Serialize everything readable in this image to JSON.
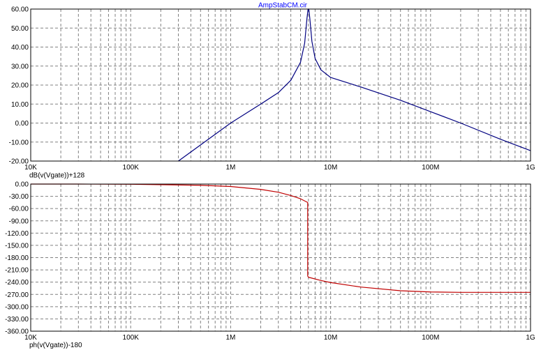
{
  "window": {
    "title": "AmpStabCM.cir"
  },
  "colors": {
    "background": "#ffffff",
    "frame": "#000000",
    "grid": "#808080",
    "magnitude_trace": "#000080",
    "phase_trace": "#c00000",
    "title_text": "#0000ff"
  },
  "chart_data": [
    {
      "type": "line",
      "title": "AmpStabCM.cir",
      "ylabel": "dB(v(Vgate))+128",
      "x_scale": "log",
      "xlim": [
        10000,
        1000000000
      ],
      "ylim": [
        -20,
        60
      ],
      "x_tick_labels": [
        "10K",
        "100K",
        "1M",
        "10M",
        "100M",
        "1G"
      ],
      "y_tick_labels": [
        "60.00",
        "50.00",
        "40.00",
        "30.00",
        "20.00",
        "10.00",
        "0.00",
        "-10.00",
        "-20.00"
      ],
      "grid": true,
      "series": [
        {
          "name": "dB(v(Vgate))+128",
          "color": "#000080",
          "x": [
            300000,
            1000000,
            2000000,
            3000000,
            4000000,
            5000000,
            5500000,
            5800000,
            5950000,
            6050000,
            6200000,
            6500000,
            7000000,
            8000000,
            10000000,
            20000000,
            50000000,
            100000000,
            200000000,
            500000000,
            1000000000
          ],
          "y": [
            -20,
            0,
            10,
            16,
            22.5,
            32,
            42,
            55,
            61,
            61,
            55,
            43,
            34,
            28,
            24,
            19,
            12,
            6,
            0,
            -8.5,
            -14.5
          ]
        }
      ]
    },
    {
      "type": "line",
      "ylabel": "ph(v(Vgate))-180",
      "x_scale": "log",
      "xlim": [
        10000,
        1000000000
      ],
      "ylim": [
        -360,
        0
      ],
      "x_tick_labels": [
        "10K",
        "100K",
        "1M",
        "10M",
        "100M",
        "1G"
      ],
      "y_tick_labels": [
        "0.00",
        "-30.00",
        "-60.00",
        "-90.00",
        "-120.00",
        "-150.00",
        "-180.00",
        "-210.00",
        "-240.00",
        "-270.00",
        "-300.00",
        "-330.00",
        "-360.00"
      ],
      "grid": true,
      "series": [
        {
          "name": "ph(v(Vgate))-180",
          "color": "#c00000",
          "x": [
            10000,
            30000,
            100000,
            200000,
            500000,
            1000000,
            2000000,
            3000000,
            4000000,
            5000000,
            5900000,
            5900001,
            6000000,
            8000000,
            10000000,
            20000000,
            50000000,
            100000000,
            200000000,
            1000000000
          ],
          "y": [
            0,
            0,
            -0.5,
            -1.5,
            -3,
            -6,
            -13,
            -20,
            -28,
            -36,
            -45,
            -225,
            -228,
            -236,
            -241,
            -252,
            -261,
            -264,
            -265,
            -265
          ]
        }
      ]
    }
  ]
}
